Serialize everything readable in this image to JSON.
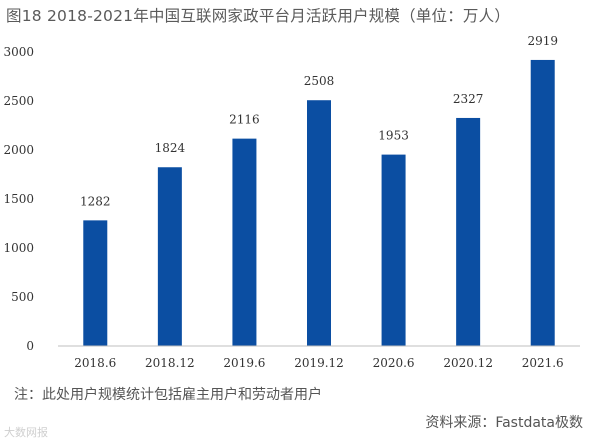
{
  "header": {
    "title": "图18    2018-2021年中国互联网家政平台月活跃用户规模（单位：万人）"
  },
  "footer": {
    "note": "注：此处用户规模统计包括雇主用户和劳动者用户",
    "source": "资料来源：Fastdata极数",
    "watermark": "大数网报"
  },
  "chart_data": {
    "type": "bar",
    "title": "2018-2021年中国互联网家政平台月活跃用户规模（单位：万人）",
    "categories": [
      "2018.6",
      "2018.12",
      "2019.6",
      "2019.12",
      "2020.6",
      "2020.12",
      "2021.6"
    ],
    "values": [
      1282,
      1824,
      2116,
      2508,
      1953,
      2327,
      2919
    ],
    "ylim": [
      0,
      3000
    ],
    "yticks": [
      0,
      500,
      1000,
      1500,
      2000,
      2500,
      3000
    ],
    "xlabel": "",
    "ylabel": "",
    "grid": false,
    "bar_color": "#0b4ea2"
  }
}
